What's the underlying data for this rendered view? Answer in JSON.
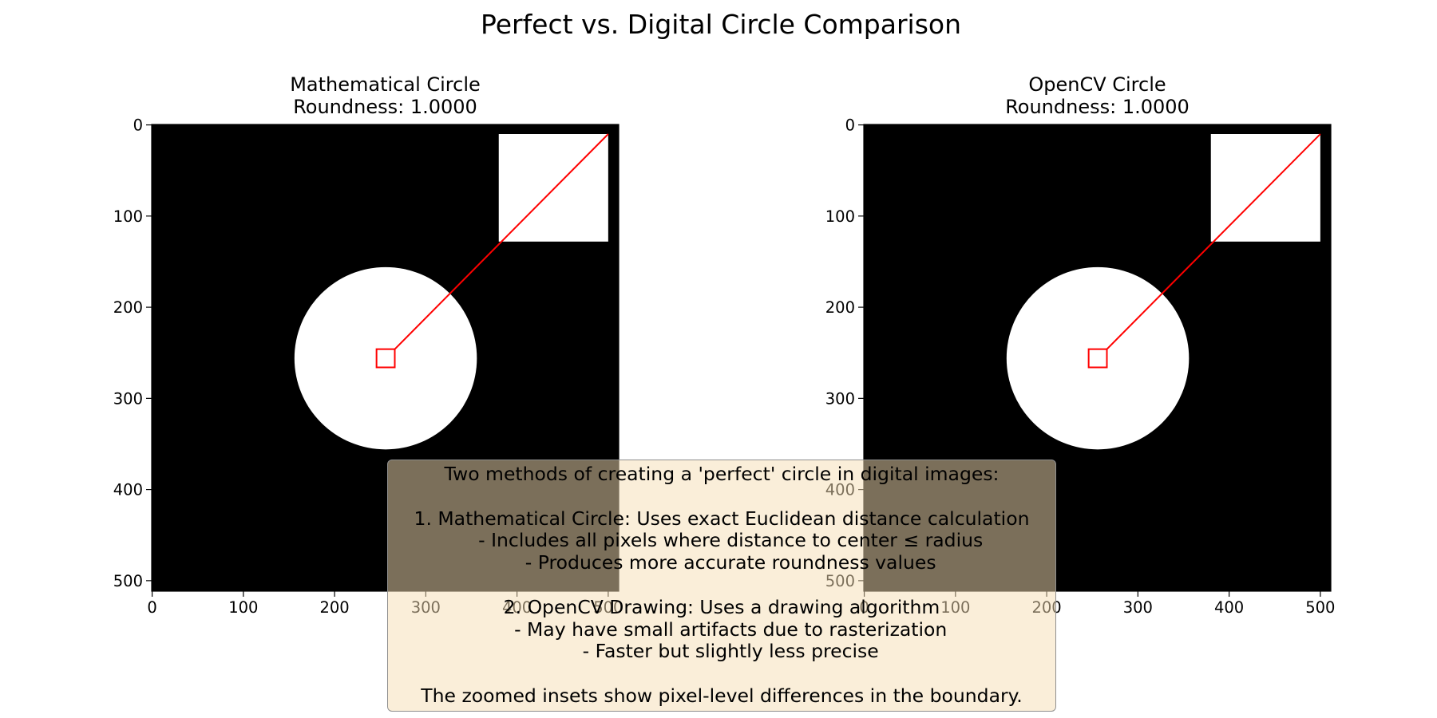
{
  "figure": {
    "title": "Perfect vs. Digital Circle Comparison"
  },
  "chart_data": [
    {
      "type": "image",
      "title_lines": [
        "Mathematical Circle",
        "Roundness: 1.0000"
      ],
      "image_size": [
        512,
        512
      ],
      "x_ticks": [
        0,
        100,
        200,
        300,
        400,
        500
      ],
      "y_ticks": [
        0,
        100,
        200,
        300,
        400,
        500
      ],
      "xlim": [
        -0.5,
        511.5
      ],
      "ylim": [
        511.5,
        -0.5
      ],
      "background_color": "#000000",
      "shape_color": "#ffffff",
      "circle": {
        "center": [
          256,
          256
        ],
        "radius": 100
      },
      "zoom_box": {
        "x": [
          246,
          266
        ],
        "y": [
          246,
          266
        ],
        "color": "#ff0000"
      },
      "inset_region": {
        "x": [
          380,
          500
        ],
        "y": [
          10,
          128
        ]
      },
      "connector": {
        "from": [
          266,
          246
        ],
        "to": [
          500,
          10
        ],
        "color": "#ff0000"
      }
    },
    {
      "type": "image",
      "title_lines": [
        "OpenCV Circle",
        "Roundness: 1.0000"
      ],
      "image_size": [
        512,
        512
      ],
      "x_ticks": [
        0,
        100,
        200,
        300,
        400,
        500
      ],
      "y_ticks": [
        0,
        100,
        200,
        300,
        400,
        500
      ],
      "xlim": [
        -0.5,
        511.5
      ],
      "ylim": [
        511.5,
        -0.5
      ],
      "background_color": "#000000",
      "shape_color": "#ffffff",
      "circle": {
        "center": [
          256,
          256
        ],
        "radius": 100
      },
      "zoom_box": {
        "x": [
          246,
          266
        ],
        "y": [
          246,
          266
        ],
        "color": "#ff0000"
      },
      "inset_region": {
        "x": [
          380,
          500
        ],
        "y": [
          10,
          128
        ]
      },
      "connector": {
        "from": [
          266,
          246
        ],
        "to": [
          500,
          10
        ],
        "color": "#ff0000"
      }
    }
  ],
  "annotation": {
    "lines": [
      "Two methods of creating a 'perfect' circle in digital images:",
      "",
      "1. Mathematical Circle: Uses exact Euclidean distance calculation",
      "   - Includes all pixels where distance to center ≤ radius",
      "   - Produces more accurate roundness values",
      "",
      "2. OpenCV Drawing: Uses a drawing algorithm",
      "   - May have small artifacts due to rasterization",
      "   - Faster but slightly less precise",
      "",
      "The zoomed insets show pixel-level differences in the boundary."
    ],
    "box_color": "#f5deb3"
  }
}
